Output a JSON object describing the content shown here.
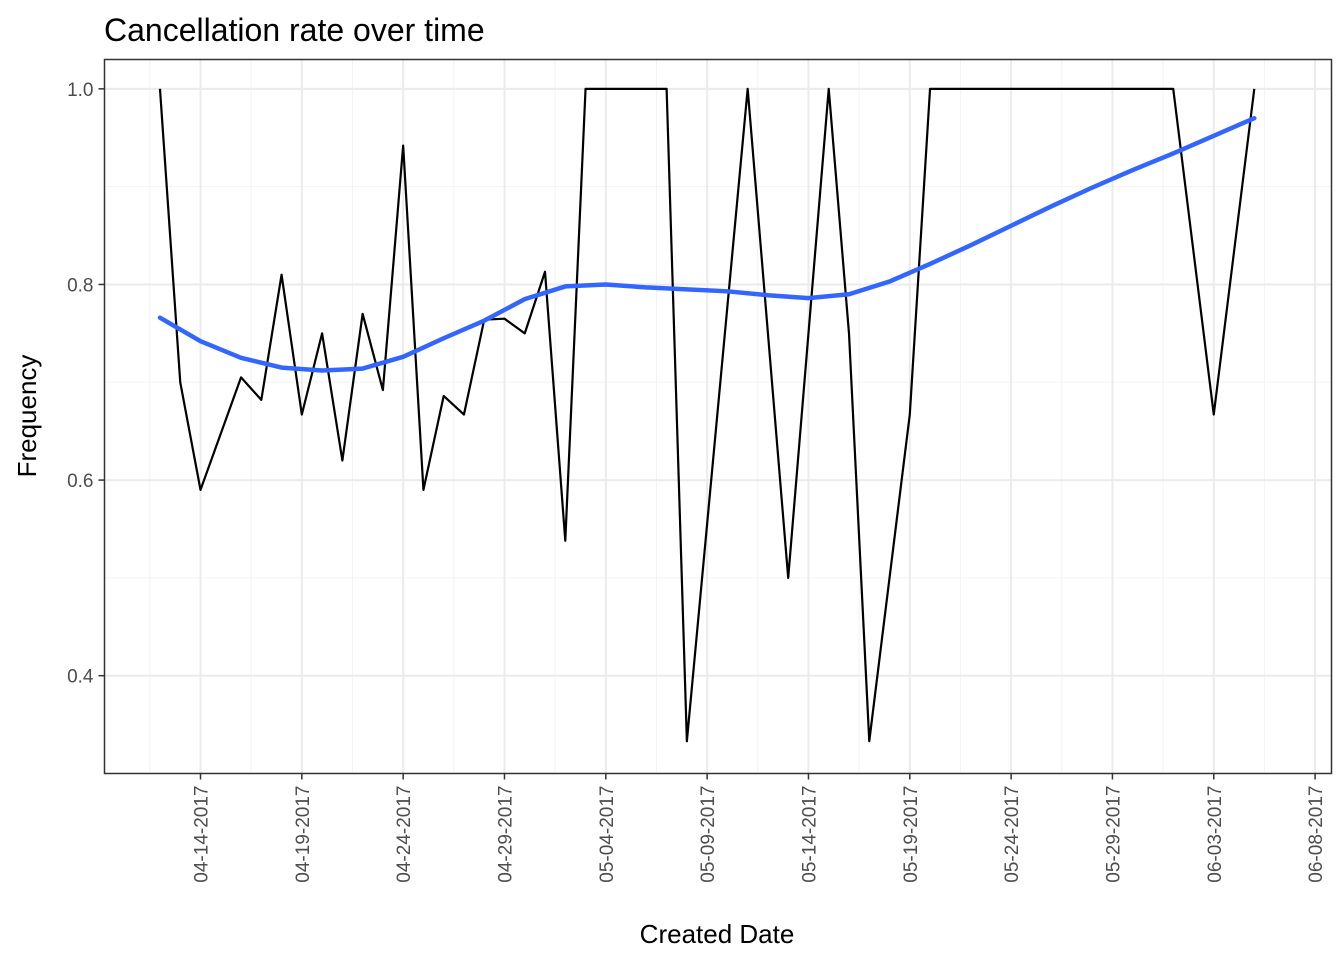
{
  "chart_data": {
    "type": "line",
    "title": "Cancellation rate over time",
    "xlabel": "Created Date",
    "ylabel": "Frequency",
    "x_start": "2017-04-13",
    "x_range": [
      "2017-04-10",
      "2017-06-08"
    ],
    "ylim": [
      0.3,
      1.03
    ],
    "x_ticks": [
      {
        "date": "2017-04-14",
        "label": "04-14-2017"
      },
      {
        "date": "2017-04-19",
        "label": "04-19-2017"
      },
      {
        "date": "2017-04-24",
        "label": "04-24-2017"
      },
      {
        "date": "2017-04-29",
        "label": "04-29-2017"
      },
      {
        "date": "2017-05-04",
        "label": "05-04-2017"
      },
      {
        "date": "2017-05-09",
        "label": "05-09-2017"
      },
      {
        "date": "2017-05-14",
        "label": "05-14-2017"
      },
      {
        "date": "2017-05-19",
        "label": "05-19-2017"
      },
      {
        "date": "2017-05-24",
        "label": "05-24-2017"
      },
      {
        "date": "2017-05-29",
        "label": "05-29-2017"
      },
      {
        "date": "2017-06-03",
        "label": "06-03-2017"
      },
      {
        "date": "2017-06-08",
        "label": "06-08-2017"
      }
    ],
    "y_ticks": [
      {
        "value": 0.4,
        "label": "0.4"
      },
      {
        "value": 0.6,
        "label": "0.6"
      },
      {
        "value": 0.8,
        "label": "0.8"
      },
      {
        "value": 1.0,
        "label": "1.0"
      }
    ],
    "grid": true,
    "legend": "none",
    "series": [
      {
        "style": "raw",
        "color": "#000000",
        "points": [
          [
            "2017-04-12",
            1.0
          ],
          [
            "2017-04-13",
            0.7
          ],
          [
            "2017-04-14",
            0.59
          ],
          [
            "2017-04-16",
            0.705
          ],
          [
            "2017-04-17",
            0.682
          ],
          [
            "2017-04-18",
            0.81
          ],
          [
            "2017-04-19",
            0.667
          ],
          [
            "2017-04-20",
            0.75
          ],
          [
            "2017-04-21",
            0.62
          ],
          [
            "2017-04-22",
            0.77
          ],
          [
            "2017-04-23",
            0.692
          ],
          [
            "2017-04-24",
            0.942
          ],
          [
            "2017-04-25",
            0.59
          ],
          [
            "2017-04-26",
            0.686
          ],
          [
            "2017-04-27",
            0.667
          ],
          [
            "2017-04-28",
            0.764
          ],
          [
            "2017-04-29",
            0.765
          ],
          [
            "2017-04-30",
            0.75
          ],
          [
            "2017-05-01",
            0.813
          ],
          [
            "2017-05-02",
            0.538
          ],
          [
            "2017-05-03",
            1.0
          ],
          [
            "2017-05-04",
            1.0
          ],
          [
            "2017-05-05",
            1.0
          ],
          [
            "2017-05-06",
            1.0
          ],
          [
            "2017-05-07",
            1.0
          ],
          [
            "2017-05-08",
            0.333
          ],
          [
            "2017-05-11",
            1.0
          ],
          [
            "2017-05-13",
            0.5
          ],
          [
            "2017-05-15",
            1.0
          ],
          [
            "2017-05-16",
            0.75
          ],
          [
            "2017-05-17",
            0.333
          ],
          [
            "2017-05-19",
            0.667
          ],
          [
            "2017-05-20",
            1.0
          ],
          [
            "2017-06-01",
            1.0
          ],
          [
            "2017-06-03",
            0.667
          ],
          [
            "2017-06-05",
            1.0
          ]
        ]
      },
      {
        "style": "smooth",
        "color": "#3366ff",
        "points": [
          [
            "2017-04-12",
            0.766
          ],
          [
            "2017-04-14",
            0.742
          ],
          [
            "2017-04-16",
            0.725
          ],
          [
            "2017-04-18",
            0.715
          ],
          [
            "2017-04-20",
            0.712
          ],
          [
            "2017-04-22",
            0.714
          ],
          [
            "2017-04-24",
            0.726
          ],
          [
            "2017-04-26",
            0.745
          ],
          [
            "2017-04-28",
            0.763
          ],
          [
            "2017-04-30",
            0.785
          ],
          [
            "2017-05-02",
            0.798
          ],
          [
            "2017-05-04",
            0.8
          ],
          [
            "2017-05-06",
            0.797
          ],
          [
            "2017-05-08",
            0.795
          ],
          [
            "2017-05-10",
            0.793
          ],
          [
            "2017-05-12",
            0.789
          ],
          [
            "2017-05-14",
            0.786
          ],
          [
            "2017-05-16",
            0.79
          ],
          [
            "2017-05-18",
            0.803
          ],
          [
            "2017-05-20",
            0.821
          ],
          [
            "2017-05-22",
            0.84
          ],
          [
            "2017-05-24",
            0.86
          ],
          [
            "2017-05-26",
            0.88
          ],
          [
            "2017-05-28",
            0.899
          ],
          [
            "2017-05-30",
            0.917
          ],
          [
            "2017-06-01",
            0.934
          ],
          [
            "2017-06-03",
            0.952
          ],
          [
            "2017-06-05",
            0.97
          ]
        ]
      }
    ]
  }
}
